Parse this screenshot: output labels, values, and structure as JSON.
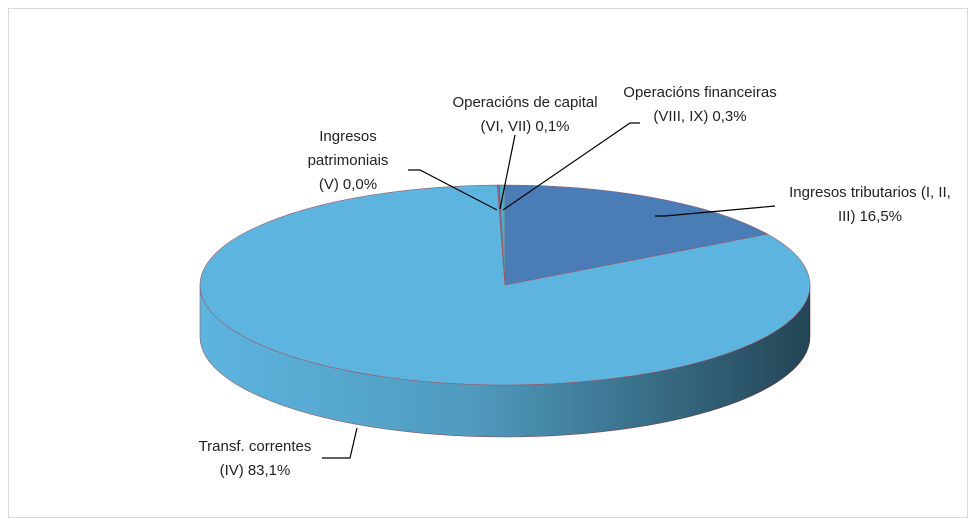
{
  "chart_data": {
    "type": "pie",
    "categories": [
      "Ingresos tributarios (I, II, III)",
      "Transf. correntes (IV)",
      "Ingresos patrimoniais (V)",
      "Operacións de capital (VI, VII)",
      "Operacións financeiras (VIII, IX)"
    ],
    "values": [
      16.5,
      83.1,
      0.0,
      0.1,
      0.3
    ],
    "value_labels": [
      "16,5%",
      "83,1%",
      "0,0%",
      "0,1%",
      "0,3%"
    ],
    "colors": [
      "#4a7cb6",
      "#5db5df",
      "#9bbb59",
      "#8064a2",
      "#4bacc6"
    ]
  }
}
